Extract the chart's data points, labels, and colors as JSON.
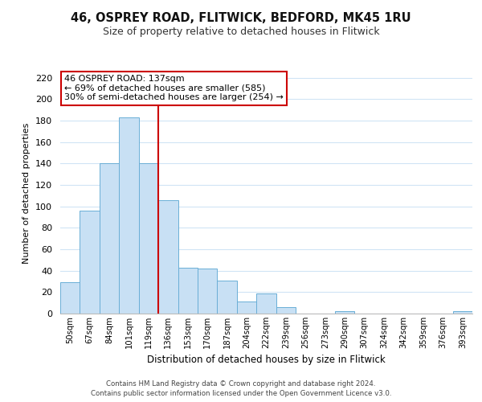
{
  "title1": "46, OSPREY ROAD, FLITWICK, BEDFORD, MK45 1RU",
  "title2": "Size of property relative to detached houses in Flitwick",
  "xlabel": "Distribution of detached houses by size in Flitwick",
  "ylabel": "Number of detached properties",
  "bar_labels": [
    "50sqm",
    "67sqm",
    "84sqm",
    "101sqm",
    "119sqm",
    "136sqm",
    "153sqm",
    "170sqm",
    "187sqm",
    "204sqm",
    "222sqm",
    "239sqm",
    "256sqm",
    "273sqm",
    "290sqm",
    "307sqm",
    "324sqm",
    "342sqm",
    "359sqm",
    "376sqm",
    "393sqm"
  ],
  "bar_values": [
    29,
    96,
    140,
    183,
    140,
    106,
    43,
    42,
    31,
    11,
    19,
    6,
    0,
    0,
    2,
    0,
    0,
    0,
    0,
    0,
    2
  ],
  "bar_color": "#c8e0f4",
  "bar_edge_color": "#6aaed6",
  "property_line_x": 4.5,
  "property_line_color": "#cc0000",
  "annotation_line1": "46 OSPREY ROAD: 137sqm",
  "annotation_line2": "← 69% of detached houses are smaller (585)",
  "annotation_line3": "30% of semi-detached houses are larger (254) →",
  "annotation_box_color": "#ffffff",
  "annotation_box_edge_color": "#cc0000",
  "ylim": [
    0,
    225
  ],
  "yticks": [
    0,
    20,
    40,
    60,
    80,
    100,
    120,
    140,
    160,
    180,
    200,
    220
  ],
  "footnote1": "Contains HM Land Registry data © Crown copyright and database right 2024.",
  "footnote2": "Contains public sector information licensed under the Open Government Licence v3.0.",
  "bg_color": "#ffffff",
  "grid_color": "#d0e4f5"
}
